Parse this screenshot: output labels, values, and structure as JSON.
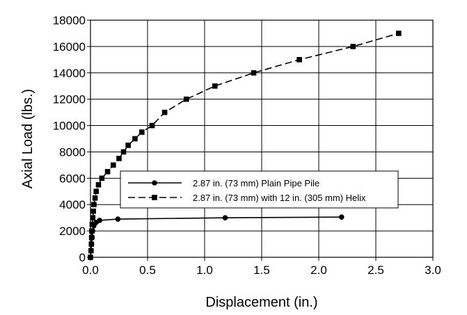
{
  "chart_data": {
    "type": "line",
    "title": "",
    "xlabel": "Displacement (in.)",
    "ylabel": "Axial Load (lbs.)",
    "xlim": [
      0,
      3.0
    ],
    "ylim": [
      0,
      18000
    ],
    "x_ticks": [
      "0.0",
      "0.5",
      "1.0",
      "1.5",
      "2.0",
      "2.5",
      "3.0"
    ],
    "y_ticks": [
      "0",
      "2000",
      "4000",
      "6000",
      "8000",
      "10000",
      "12000",
      "14000",
      "16000",
      "18000"
    ],
    "grid": true,
    "legend_position": "center-right",
    "series": [
      {
        "name": "2.87 in. (73 mm) Plain Pipe Pile",
        "marker": "circle",
        "line_style": "solid",
        "color": "#000000",
        "points": [
          [
            0.0,
            0
          ],
          [
            0.005,
            500
          ],
          [
            0.01,
            1000
          ],
          [
            0.015,
            1500
          ],
          [
            0.02,
            2000
          ],
          [
            0.03,
            2400
          ],
          [
            0.05,
            2650
          ],
          [
            0.08,
            2800
          ],
          [
            0.24,
            2900
          ],
          [
            1.18,
            3000
          ],
          [
            2.2,
            3050
          ]
        ]
      },
      {
        "name": "2.87 in. (73 mm) with 12 in. (305 mm) Helix",
        "marker": "square",
        "line_style": "dashed",
        "color": "#000000",
        "points": [
          [
            0.0,
            0
          ],
          [
            0.005,
            500
          ],
          [
            0.008,
            1000
          ],
          [
            0.01,
            1500
          ],
          [
            0.012,
            2000
          ],
          [
            0.015,
            2500
          ],
          [
            0.02,
            3000
          ],
          [
            0.025,
            3500
          ],
          [
            0.03,
            4000
          ],
          [
            0.04,
            4500
          ],
          [
            0.05,
            5000
          ],
          [
            0.07,
            5500
          ],
          [
            0.1,
            6000
          ],
          [
            0.15,
            6500
          ],
          [
            0.2,
            7000
          ],
          [
            0.25,
            7500
          ],
          [
            0.29,
            8000
          ],
          [
            0.33,
            8500
          ],
          [
            0.39,
            9000
          ],
          [
            0.45,
            9500
          ],
          [
            0.54,
            10000
          ],
          [
            0.65,
            11000
          ],
          [
            0.84,
            12000
          ],
          [
            1.09,
            13000
          ],
          [
            1.43,
            14000
          ],
          [
            1.83,
            15000
          ],
          [
            2.3,
            16000
          ],
          [
            2.7,
            17000
          ]
        ]
      }
    ]
  }
}
